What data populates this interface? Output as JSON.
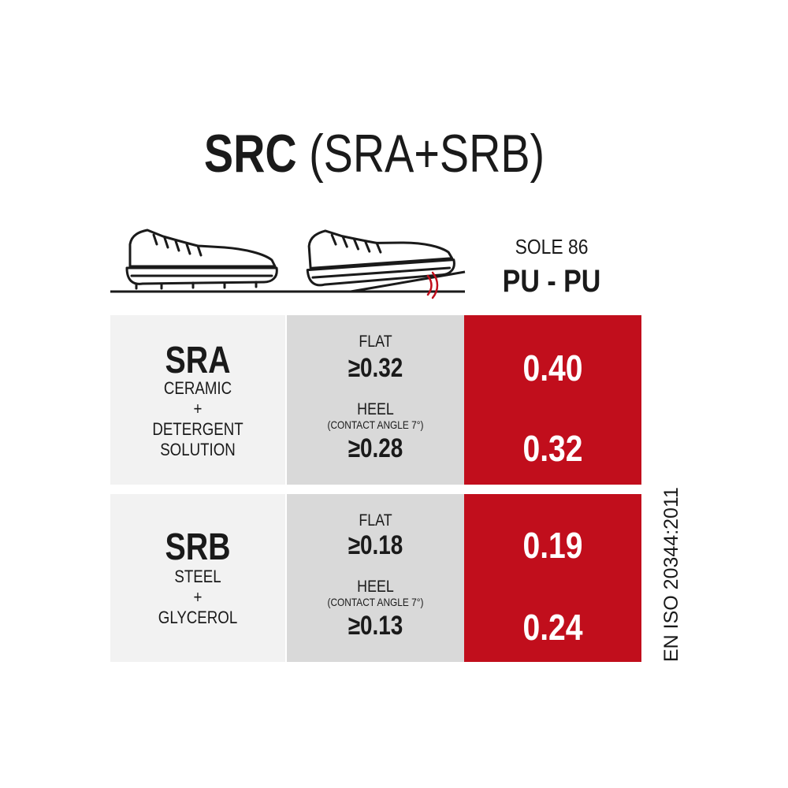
{
  "title": {
    "main": "SRC",
    "sub": "(SRA+SRB)"
  },
  "sole": {
    "label": "SOLE 86",
    "type": "PU - PU"
  },
  "icons": [
    "shoe-flat-icon",
    "shoe-heel-icon"
  ],
  "colors": {
    "accent": "#c10e1c",
    "light_panel": "#f2f2f2",
    "mid_panel": "#d9d9d9"
  },
  "rows": [
    {
      "code": "SRA",
      "surface": [
        "CERAMIC",
        "+",
        "DETERGENT",
        "SOLUTION"
      ],
      "flat_label": "FLAT",
      "flat_req": "≥0.32",
      "heel_label": "HEEL",
      "heel_note": "(CONTACT ANGLE 7°)",
      "heel_req": "≥0.28",
      "flat_value": "0.40",
      "heel_value": "0.32"
    },
    {
      "code": "SRB",
      "surface": [
        "STEEL",
        "+",
        "GLYCEROL"
      ],
      "flat_label": "FLAT",
      "flat_req": "≥0.18",
      "heel_label": "HEEL",
      "heel_note": "(CONTACT ANGLE 7°)",
      "heel_req": "≥0.13",
      "flat_value": "0.19",
      "heel_value": "0.24"
    }
  ],
  "standard": "EN ISO 20344:2011"
}
